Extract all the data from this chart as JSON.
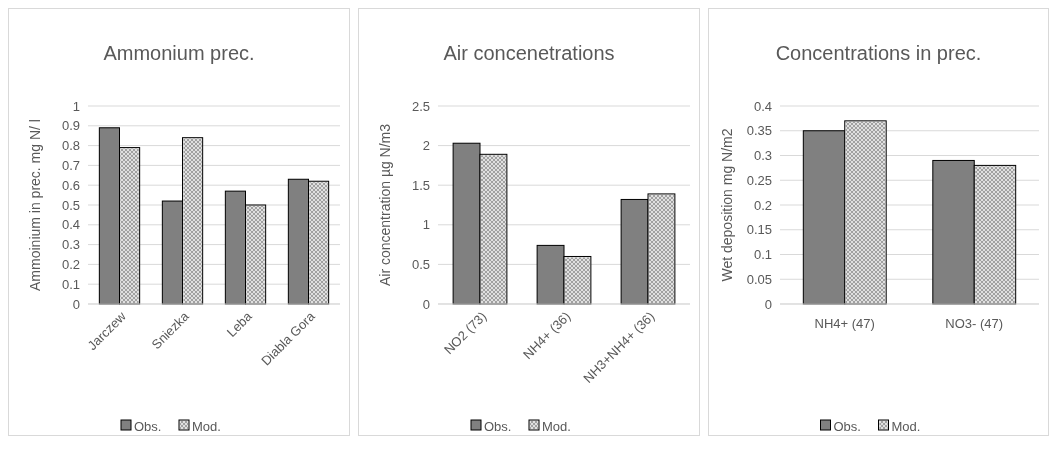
{
  "chart_data": [
    {
      "type": "bar",
      "title": "Ammonium prec.",
      "ylabel": "Ammoinium in prec. mg N/ l",
      "categories": [
        "Jarczew",
        "Sniezka",
        "Leba",
        "Diabla Gora"
      ],
      "series": [
        {
          "name": "Obs.",
          "color": "#808080",
          "values": [
            0.89,
            0.52,
            0.57,
            0.63
          ]
        },
        {
          "name": "Mod.",
          "color": "#e0e0e0",
          "values": [
            0.79,
            0.84,
            0.5,
            0.62
          ]
        }
      ],
      "ylim": [
        0,
        1
      ],
      "yticks": [
        0,
        0.1,
        0.2,
        0.3,
        0.4,
        0.5,
        0.6,
        0.7,
        0.8,
        0.9,
        1
      ],
      "grid": "y",
      "legend": "bottom"
    },
    {
      "type": "bar",
      "title": "Air concenetrations",
      "ylabel": "Air concentration µg N/m3",
      "categories": [
        "NO2 (73)",
        "NH4+ (36)",
        "NH3+NH4+ (36)"
      ],
      "series": [
        {
          "name": "Obs.",
          "color": "#808080",
          "values": [
            2.03,
            0.74,
            1.32
          ]
        },
        {
          "name": "Mod.",
          "color": "#e0e0e0",
          "values": [
            1.89,
            0.6,
            1.39
          ]
        }
      ],
      "ylim": [
        0,
        2.5
      ],
      "yticks": [
        0,
        0.5,
        1,
        1.5,
        2,
        2.5
      ],
      "grid": "y",
      "legend": "bottom"
    },
    {
      "type": "bar",
      "title": "Concentrations in prec.",
      "ylabel": "Wet deposition mg N/m2",
      "categories": [
        "NH4+ (47)",
        "NO3- (47)"
      ],
      "series": [
        {
          "name": "Obs.",
          "color": "#808080",
          "values": [
            0.35,
            0.29
          ]
        },
        {
          "name": "Mod.",
          "color": "#e0e0e0",
          "values": [
            0.37,
            0.28
          ]
        }
      ],
      "ylim": [
        0,
        0.4
      ],
      "yticks": [
        0,
        0.05,
        0.1,
        0.15,
        0.2,
        0.25,
        0.3,
        0.35,
        0.4
      ],
      "grid": "y",
      "legend": "bottom"
    }
  ]
}
